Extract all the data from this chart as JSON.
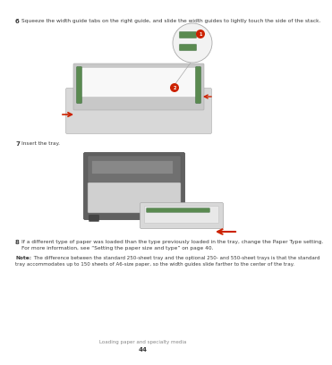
{
  "bg_color": "#ffffff",
  "footer_text": "Loading paper and specialty media",
  "footer_page": "44",
  "step6_label": "6",
  "step6_text": "Squeeze the width guide tabs on the right guide, and slide the width guides to lightly touch the side of the stack.",
  "step7_label": "7",
  "step7_text": "Insert the tray.",
  "step8_label": "8",
  "step8_line1": "If a different type of paper was loaded than the type previously loaded in the tray, change the Paper Type setting.",
  "step8_line2": "For more information, see “Setting the paper size and type” on page 40.",
  "note_bold": "Note:",
  "note_text": " The difference between the standard 250-sheet tray and the optional 250- and 550-sheet trays is that the standard tray accommodates up to 150 sheets of A6-size paper, so the width guides slide farther to the center of the tray.",
  "text_color": "#3a3a3a",
  "light_text": "#888888",
  "red_color": "#cc2200",
  "green_color": "#5a8a50",
  "dark_gray": "#555555",
  "mid_gray": "#aaaaaa",
  "light_gray": "#d8d8d8",
  "very_light_gray": "#eeeeee"
}
